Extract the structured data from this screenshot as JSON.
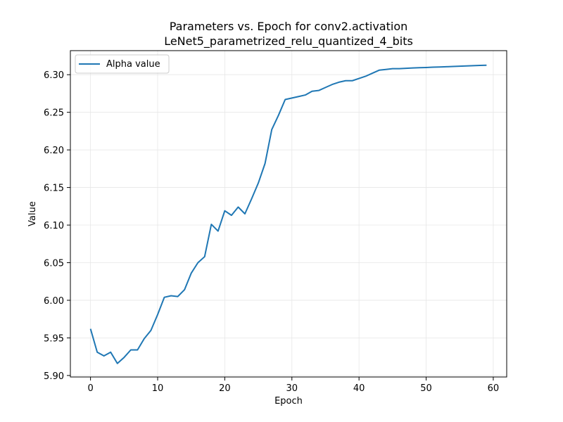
{
  "chart_data": {
    "type": "line",
    "title": "Parameters vs. Epoch for conv2.activation",
    "subtitle": "LeNet5_parametrized_relu_quantized_4_bits",
    "xlabel": "Epoch",
    "ylabel": "Value",
    "xlim": [
      -3,
      62
    ],
    "ylim": [
      5.898,
      6.332
    ],
    "xticks": [
      0,
      10,
      20,
      30,
      40,
      50,
      60
    ],
    "yticks": [
      5.9,
      5.95,
      6.0,
      6.05,
      6.1,
      6.15,
      6.2,
      6.25,
      6.3
    ],
    "grid": true,
    "legend_position": "top-left",
    "series": [
      {
        "name": "Alpha value",
        "color": "#1f77b4",
        "x": [
          0,
          1,
          2,
          3,
          4,
          5,
          6,
          7,
          8,
          9,
          10,
          11,
          12,
          13,
          14,
          15,
          16,
          17,
          18,
          19,
          20,
          21,
          22,
          23,
          24,
          25,
          26,
          27,
          28,
          29,
          30,
          31,
          32,
          33,
          34,
          35,
          36,
          37,
          38,
          39,
          40,
          41,
          42,
          43,
          44,
          45,
          46,
          47,
          48,
          49,
          50,
          51,
          52,
          53,
          54,
          55,
          56,
          57,
          58,
          59
        ],
        "values": [
          5.962,
          5.931,
          5.926,
          5.931,
          5.916,
          5.924,
          5.934,
          5.934,
          5.949,
          5.96,
          5.981,
          6.004,
          6.006,
          6.005,
          6.014,
          6.036,
          6.05,
          6.058,
          6.101,
          6.092,
          6.119,
          6.113,
          6.124,
          6.115,
          6.135,
          6.156,
          6.182,
          6.227,
          6.246,
          6.267,
          6.269,
          6.271,
          6.273,
          6.278,
          6.279,
          6.283,
          6.287,
          6.29,
          6.292,
          6.292,
          6.295,
          6.298,
          6.302,
          6.306,
          6.307,
          6.308,
          6.308,
          6.3085,
          6.309,
          6.3093,
          6.3096,
          6.31,
          6.3103,
          6.3106,
          6.311,
          6.3113,
          6.3116,
          6.312,
          6.3123,
          6.3126
        ]
      }
    ]
  }
}
